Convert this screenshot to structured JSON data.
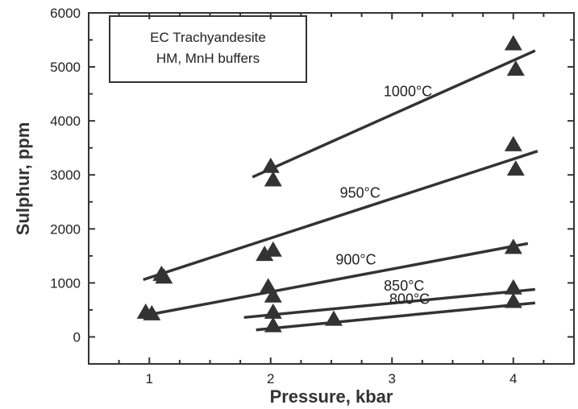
{
  "chart_data": {
    "type": "scatter",
    "xlabel": "Pressure, kbar",
    "ylabel": "Sulphur, ppm",
    "x_ticks": [
      1,
      2,
      3,
      4
    ],
    "y_ticks": [
      0,
      1000,
      2000,
      3000,
      4000,
      5000,
      6000
    ],
    "y_tick_labels": [
      "0",
      "1000",
      "2000",
      "3000",
      "4000",
      "5000",
      "6000"
    ],
    "xlim": [
      0.5,
      4.5
    ],
    "ylim": [
      -500,
      6000
    ],
    "legend_lines": [
      "EC Trachyandesite",
      "HM, MnH buffers"
    ],
    "legend_position": "top-left",
    "marker": "triangle",
    "color": "#333333",
    "series": [
      {
        "name": "1000°C",
        "points": [
          [
            2.0,
            3150
          ],
          [
            2.02,
            2900
          ],
          [
            4.0,
            5420
          ],
          [
            4.02,
            4950
          ]
        ],
        "fit": [
          [
            1.85,
            2960
          ],
          [
            4.18,
            5300
          ]
        ]
      },
      {
        "name": "950°C",
        "points": [
          [
            1.1,
            1150
          ],
          [
            1.12,
            1100
          ],
          [
            1.95,
            1520
          ],
          [
            2.02,
            1600
          ],
          [
            4.0,
            3550
          ],
          [
            4.02,
            3100
          ]
        ],
        "fit": [
          [
            0.95,
            1060
          ],
          [
            4.2,
            3440
          ]
        ]
      },
      {
        "name": "900°C",
        "points": [
          [
            0.97,
            450
          ],
          [
            1.02,
            420
          ],
          [
            1.98,
            920
          ],
          [
            2.02,
            750
          ],
          [
            4.0,
            1650
          ]
        ],
        "fit": [
          [
            0.97,
            400
          ],
          [
            4.12,
            1730
          ]
        ]
      },
      {
        "name": "850°C",
        "points": [
          [
            2.02,
            450
          ],
          [
            4.0,
            900
          ]
        ],
        "fit": [
          [
            1.78,
            360
          ],
          [
            4.18,
            880
          ]
        ]
      },
      {
        "name": "800°C",
        "points": [
          [
            2.02,
            200
          ],
          [
            2.52,
            320
          ],
          [
            4.0,
            650
          ]
        ],
        "fit": [
          [
            1.88,
            130
          ],
          [
            4.18,
            630
          ]
        ]
      }
    ]
  }
}
